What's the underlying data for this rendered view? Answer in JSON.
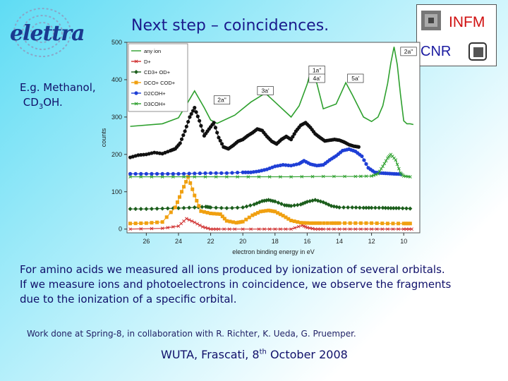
{
  "slide": {
    "title": "Next step – coincidences.",
    "logo_text": "elettra",
    "inst_infm": "INFM",
    "inst_cnr": "CNR",
    "example_line1": "E.g. Methanol,",
    "example_mol_a": "CD",
    "example_mol_sub": "3",
    "example_mol_b": "OH.",
    "body_line1": "For amino acids we measured all ions produced by ionization of several orbitals.",
    "body_line2": "If we measure ions and photoelectrons in coincidence, we observe the fragments",
    "body_line3": " due to the ionization of a specific orbital.",
    "work_credit": "Work done at Spring-8, in collaboration with R. Richter, K. Ueda, G. Pruemper.",
    "footer_a": "WUTA, Frascati, 8",
    "footer_sup": "th",
    "footer_b": " October 2008"
  },
  "chart_data": {
    "type": "line",
    "xlabel": "electron binding energy in eV",
    "ylabel": "counts",
    "xlim": [
      27.2,
      9.0
    ],
    "ylim": [
      -10,
      500
    ],
    "x_ticks": [
      26,
      24,
      22,
      20,
      18,
      16,
      14,
      12,
      10
    ],
    "y_ticks": [
      0,
      100,
      200,
      300,
      400,
      500
    ],
    "legend_position": "top-left",
    "annotations": [
      {
        "text": "2a\"",
        "x": 21.3,
        "y": 340
      },
      {
        "text": "3a'",
        "x": 18.6,
        "y": 365
      },
      {
        "text": "1a\"",
        "x": 15.4,
        "y": 420
      },
      {
        "text": "4a'",
        "x": 15.4,
        "y": 398
      },
      {
        "text": "5a'",
        "x": 13.0,
        "y": 398
      },
      {
        "text": "2a\"",
        "x": 9.7,
        "y": 470
      }
    ],
    "series": [
      {
        "name": "any ion",
        "color": "#2ea02e",
        "marker": "none",
        "x": [
          27.0,
          25,
          24,
          23.3,
          23.0,
          22.4,
          22.0,
          21.6,
          20.5,
          19.5,
          18.6,
          18.0,
          17.0,
          16.5,
          16.0,
          15.8,
          15.4,
          15.0,
          14.2,
          13.6,
          13.2,
          12.5,
          12.0,
          11.6,
          11.3,
          11.0,
          10.8,
          10.6,
          10.4,
          10.2,
          10.0,
          9.8,
          9.6,
          9.4
        ],
        "y": [
          275,
          282,
          298,
          348,
          370,
          325,
          292,
          283,
          305,
          340,
          364,
          340,
          300,
          330,
          388,
          420,
          390,
          322,
          335,
          392,
          360,
          300,
          288,
          300,
          330,
          390,
          445,
          488,
          440,
          360,
          290,
          282,
          282,
          280
        ]
      },
      {
        "name": "D+",
        "color": "#d03030",
        "marker": "x",
        "x": [
          27.0,
          25,
          24,
          23.5,
          23.0,
          22.5,
          22.0,
          21.5,
          20.5,
          19,
          18,
          17,
          16.3,
          16.0,
          15.5,
          15.0,
          14,
          13,
          12,
          11,
          10,
          9.5
        ],
        "y": [
          0,
          2,
          8,
          28,
          18,
          6,
          0,
          0,
          0,
          0,
          0,
          0,
          10,
          4,
          0,
          0,
          0,
          0,
          0,
          0,
          0,
          0
        ]
      },
      {
        "name": "CD3+ OD+",
        "color": "#1c5e1c",
        "marker": "diamond",
        "x": [
          27.0,
          26,
          25,
          24,
          23,
          22.3,
          22.0,
          21,
          20,
          19.3,
          18.8,
          18.4,
          18.0,
          17.4,
          17,
          16.4,
          16.0,
          15.5,
          15.0,
          14.5,
          14.0,
          13.2,
          12.5,
          12.0,
          11.3,
          10.8,
          10.3,
          9.6
        ],
        "y": [
          54,
          54,
          55,
          56,
          58,
          60,
          58,
          56,
          58,
          66,
          75,
          78,
          74,
          64,
          62,
          66,
          73,
          78,
          72,
          62,
          58,
          58,
          57,
          57,
          57,
          56,
          56,
          55
        ]
      },
      {
        "name": "DCO+ COD+",
        "color": "#f0a010",
        "marker": "square",
        "x": [
          27.0,
          26,
          25,
          24.2,
          23.8,
          23.4,
          23.0,
          22.6,
          22.0,
          21.4,
          21.0,
          20.4,
          20.0,
          19.4,
          18.9,
          18.4,
          18.0,
          17.5,
          17.0,
          16.4,
          15.8,
          15.2,
          14.5,
          14.0,
          13.0,
          12.0,
          11.0,
          10.0,
          9.6
        ],
        "y": [
          15,
          16,
          19,
          58,
          100,
          140,
          90,
          48,
          42,
          40,
          22,
          17,
          20,
          37,
          47,
          50,
          47,
          36,
          23,
          17,
          16,
          16,
          16,
          16,
          16,
          16,
          15,
          15,
          15
        ]
      },
      {
        "name": "D2COH+",
        "color": "#1f3fd6",
        "marker": "circle",
        "x": [
          27.0,
          26,
          25,
          24,
          23,
          22,
          21,
          20,
          19.5,
          19,
          18.5,
          18,
          17.5,
          17,
          16.5,
          16.2,
          15.8,
          15.4,
          15.0,
          14.6,
          14.2,
          13.8,
          13.4,
          13.0,
          12.6,
          12.2,
          11.8,
          11.4,
          11.0,
          10.6,
          10.2
        ],
        "y": [
          148,
          148,
          148,
          148,
          149,
          150,
          150,
          152,
          152,
          155,
          160,
          168,
          172,
          170,
          175,
          183,
          174,
          170,
          172,
          185,
          196,
          210,
          214,
          208,
          195,
          164,
          152,
          150,
          149,
          148,
          147
        ]
      },
      {
        "name": "D3COH+",
        "color": "#2ea02e",
        "marker": "x",
        "x": [
          27.0,
          25,
          23,
          21,
          19,
          17,
          15,
          13,
          12,
          11.6,
          11.3,
          11.0,
          10.8,
          10.5,
          10.2,
          10.0,
          9.6
        ],
        "y": [
          140,
          140,
          140,
          140,
          140,
          140,
          141,
          141,
          142,
          148,
          168,
          190,
          200,
          185,
          150,
          142,
          140
        ]
      },
      {
        "name": "black (any ion, sum)",
        "color": "#111111",
        "marker": "circle",
        "legend_hidden": true,
        "x": [
          27.0,
          26.5,
          26.0,
          25.5,
          25.0,
          24.5,
          24.2,
          23.9,
          23.6,
          23.3,
          23.0,
          22.7,
          22.4,
          22.1,
          21.8,
          21.5,
          21.2,
          20.9,
          20.6,
          20.3,
          20.0,
          19.7,
          19.4,
          19.1,
          18.8,
          18.5,
          18.2,
          17.9,
          17.6,
          17.3,
          17.0,
          16.7,
          16.4,
          16.1,
          15.8,
          15.5,
          15.2,
          14.9,
          14.6,
          14.3,
          14.0,
          13.7,
          13.4,
          13.1,
          12.8
        ],
        "y": [
          192,
          198,
          200,
          205,
          202,
          210,
          215,
          230,
          262,
          300,
          325,
          290,
          250,
          268,
          285,
          245,
          220,
          215,
          224,
          235,
          240,
          250,
          258,
          268,
          264,
          248,
          235,
          228,
          240,
          248,
          240,
          262,
          278,
          285,
          272,
          255,
          245,
          236,
          238,
          240,
          238,
          233,
          226,
          222,
          220
        ]
      }
    ]
  }
}
